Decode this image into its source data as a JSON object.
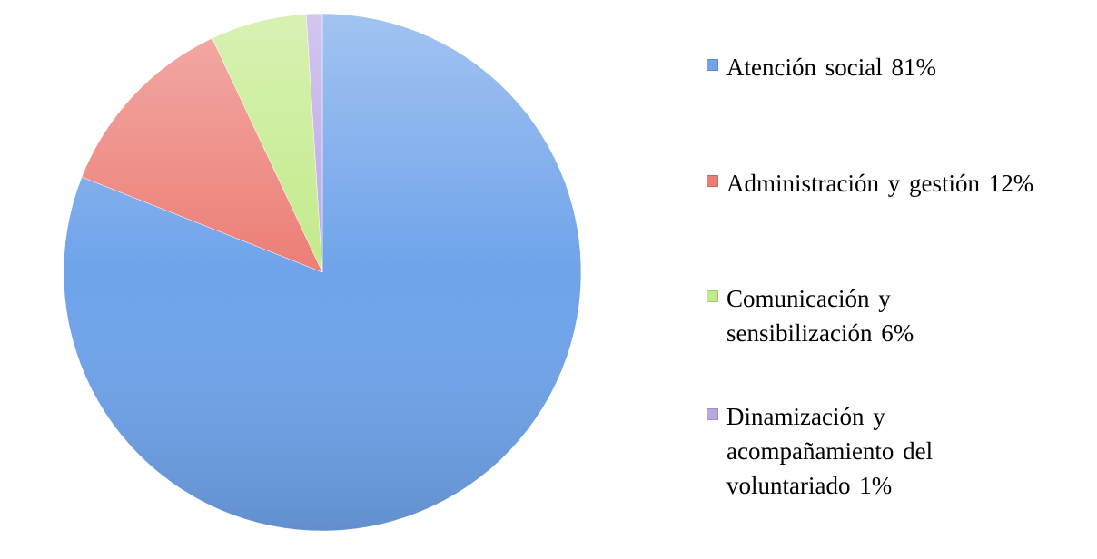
{
  "chart_data": {
    "type": "pie",
    "categories": [
      "Atención social 81%",
      "Administración y gestión 12%",
      "Comunicación y sensibilización 6%",
      "Dinamización y acompañamiento del voluntariado 1%"
    ],
    "values": [
      81,
      12,
      6,
      1
    ],
    "colors": [
      "#6fa3ea",
      "#ec7e76",
      "#c3ea8a",
      "#bba7e6"
    ],
    "start": "top",
    "direction": "clockwise",
    "legend": "right"
  }
}
